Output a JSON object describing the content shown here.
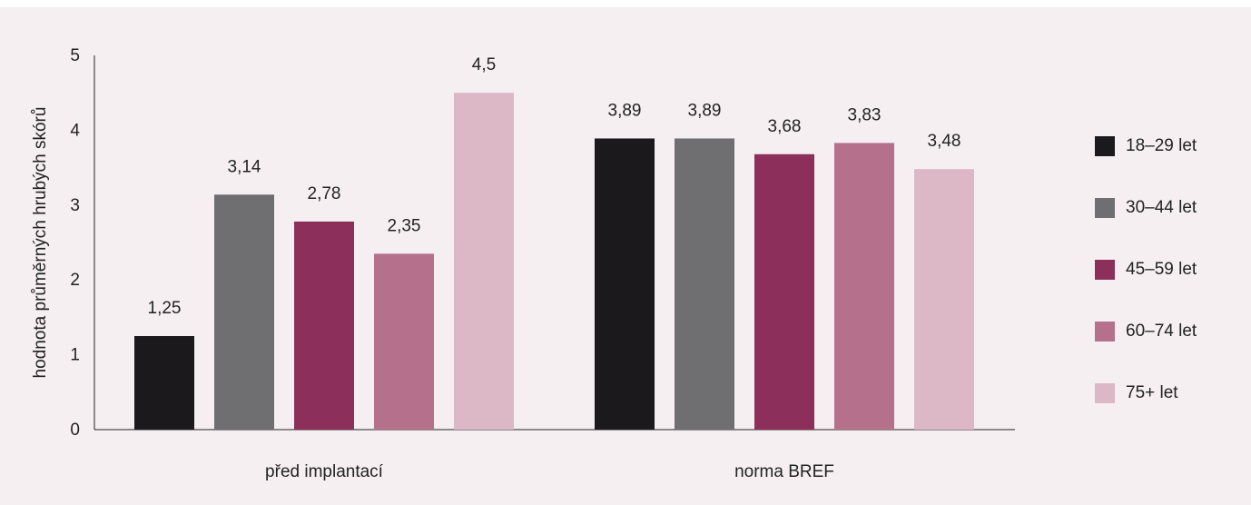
{
  "chart_data": {
    "type": "bar",
    "ylabel": "hodnota průměrných hrubých skórů",
    "ylim": [
      0,
      5
    ],
    "yticks": [
      "0",
      "1",
      "2",
      "3",
      "4",
      "5"
    ],
    "categories": [
      "před implantací",
      "norma BREF"
    ],
    "series": [
      {
        "name": "18–29 let",
        "color": "#1b191c",
        "values": [
          1.25,
          3.89
        ],
        "labels": [
          "1,25",
          "3,89"
        ]
      },
      {
        "name": "30–44 let",
        "color": "#6f6f71",
        "values": [
          3.14,
          3.89
        ],
        "labels": [
          "3,14",
          "3,89"
        ]
      },
      {
        "name": "45–59 let",
        "color": "#8c2f5a",
        "values": [
          2.78,
          3.68
        ],
        "labels": [
          "2,78",
          "3,68"
        ]
      },
      {
        "name": "60–74 let",
        "color": "#b5718c",
        "values": [
          2.35,
          3.83
        ],
        "labels": [
          "2,35",
          "3,83"
        ]
      },
      {
        "name": "75+ let",
        "color": "#dcb7c6",
        "values": [
          4.5,
          3.48
        ],
        "labels": [
          "4,5",
          "3,48"
        ]
      }
    ],
    "grid": false,
    "legend_position": "right"
  }
}
